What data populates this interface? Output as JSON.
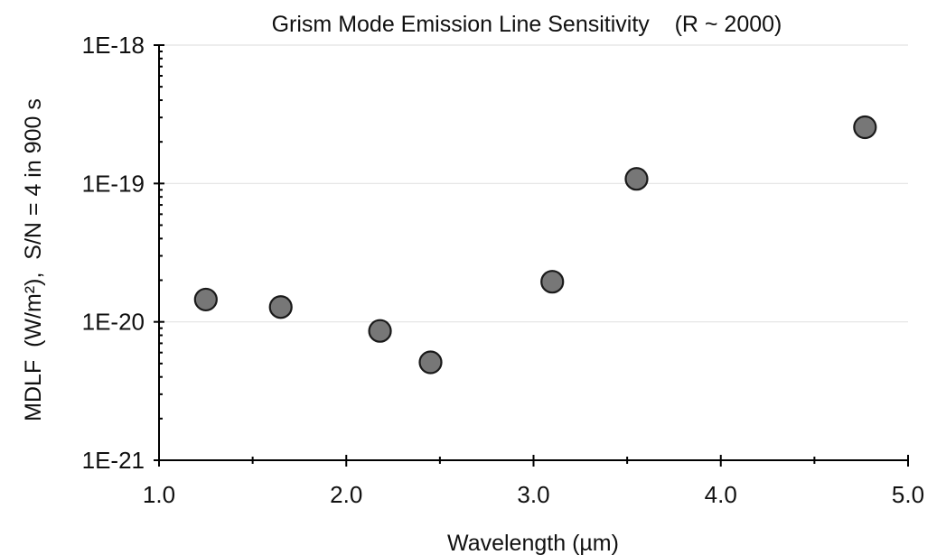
{
  "chart_data": {
    "type": "scatter",
    "title": "Grism Mode Emission Line Sensitivity    (R ~ 2000)",
    "xlabel": "Wavelength (µm)",
    "ylabel": "MDLF  (W/m²),  S/N = 4 in 900 s",
    "xlim": [
      1.0,
      5.0
    ],
    "ylim": [
      1e-21,
      1e-18
    ],
    "yscale": "log",
    "x_ticks": [
      1.0,
      2.0,
      3.0,
      4.0,
      5.0
    ],
    "x_tick_labels": [
      "1.0",
      "2.0",
      "3.0",
      "4.0",
      "5.0"
    ],
    "x_minor_ticks": [
      1.5,
      2.5,
      3.5,
      4.5
    ],
    "y_ticks": [
      1e-21,
      1e-20,
      1e-19,
      1e-18
    ],
    "y_tick_labels": [
      "1E-21",
      "1E-20",
      "1E-19",
      "1E-18"
    ],
    "grid": "horizontal",
    "legend": "none",
    "marker_color": "#777777",
    "series": [
      {
        "x": [
          1.25,
          1.65,
          2.18,
          2.45,
          3.1,
          3.55,
          4.77
        ],
        "y": [
          1.45e-20,
          1.28e-20,
          8.6e-21,
          5.1e-21,
          1.95e-20,
          1.08e-19,
          2.55e-19
        ]
      }
    ]
  }
}
